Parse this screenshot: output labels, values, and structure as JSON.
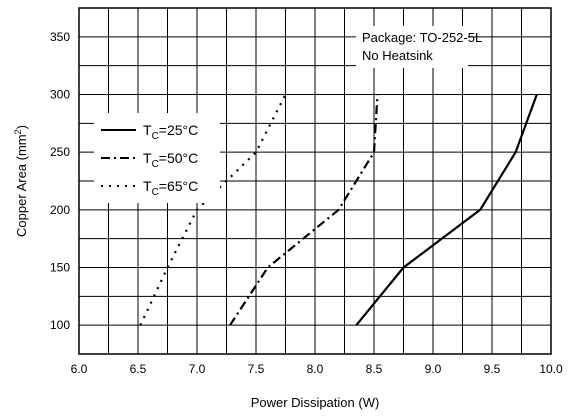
{
  "chart_data": {
    "type": "line",
    "title": "",
    "xlabel": "Power Dissipation (W)",
    "ylabel": "Copper Area (mm",
    "ylabel_sup": "2",
    "ylabel_tail": ")",
    "xlim": [
      6.0,
      10.0
    ],
    "ylim": [
      75,
      375
    ],
    "x_ticks": [
      "6.0",
      "6.5",
      "7.0",
      "7.5",
      "8.0",
      "8.5",
      "9.0",
      "9.5",
      "10.0"
    ],
    "y_ticks": [
      "100",
      "150",
      "200",
      "250",
      "300",
      "350"
    ],
    "grid": true,
    "annotations": [
      {
        "lines": [
          "Package: TO-252-5L",
          "No Heatsink"
        ]
      }
    ],
    "legend_position": "middle-left",
    "series": [
      {
        "label_main": "T",
        "label_sub": "C",
        "label_tail": "=25°C",
        "style": "solid",
        "x": [
          8.35,
          8.75,
          9.4,
          9.7,
          9.88
        ],
        "y": [
          100,
          150,
          200,
          250,
          300
        ]
      },
      {
        "label_main": "T",
        "label_sub": "C",
        "label_tail": "=50°C",
        "style": "dashdot",
        "x": [
          7.28,
          7.6,
          8.2,
          8.5,
          8.53
        ],
        "y": [
          100,
          150,
          200,
          250,
          300
        ]
      },
      {
        "label_main": "T",
        "label_sub": "C",
        "label_tail": "=65°C",
        "style": "dotted",
        "x": [
          6.52,
          6.75,
          7.0,
          7.5,
          7.75
        ],
        "y": [
          100,
          150,
          200,
          250,
          300
        ]
      }
    ]
  }
}
